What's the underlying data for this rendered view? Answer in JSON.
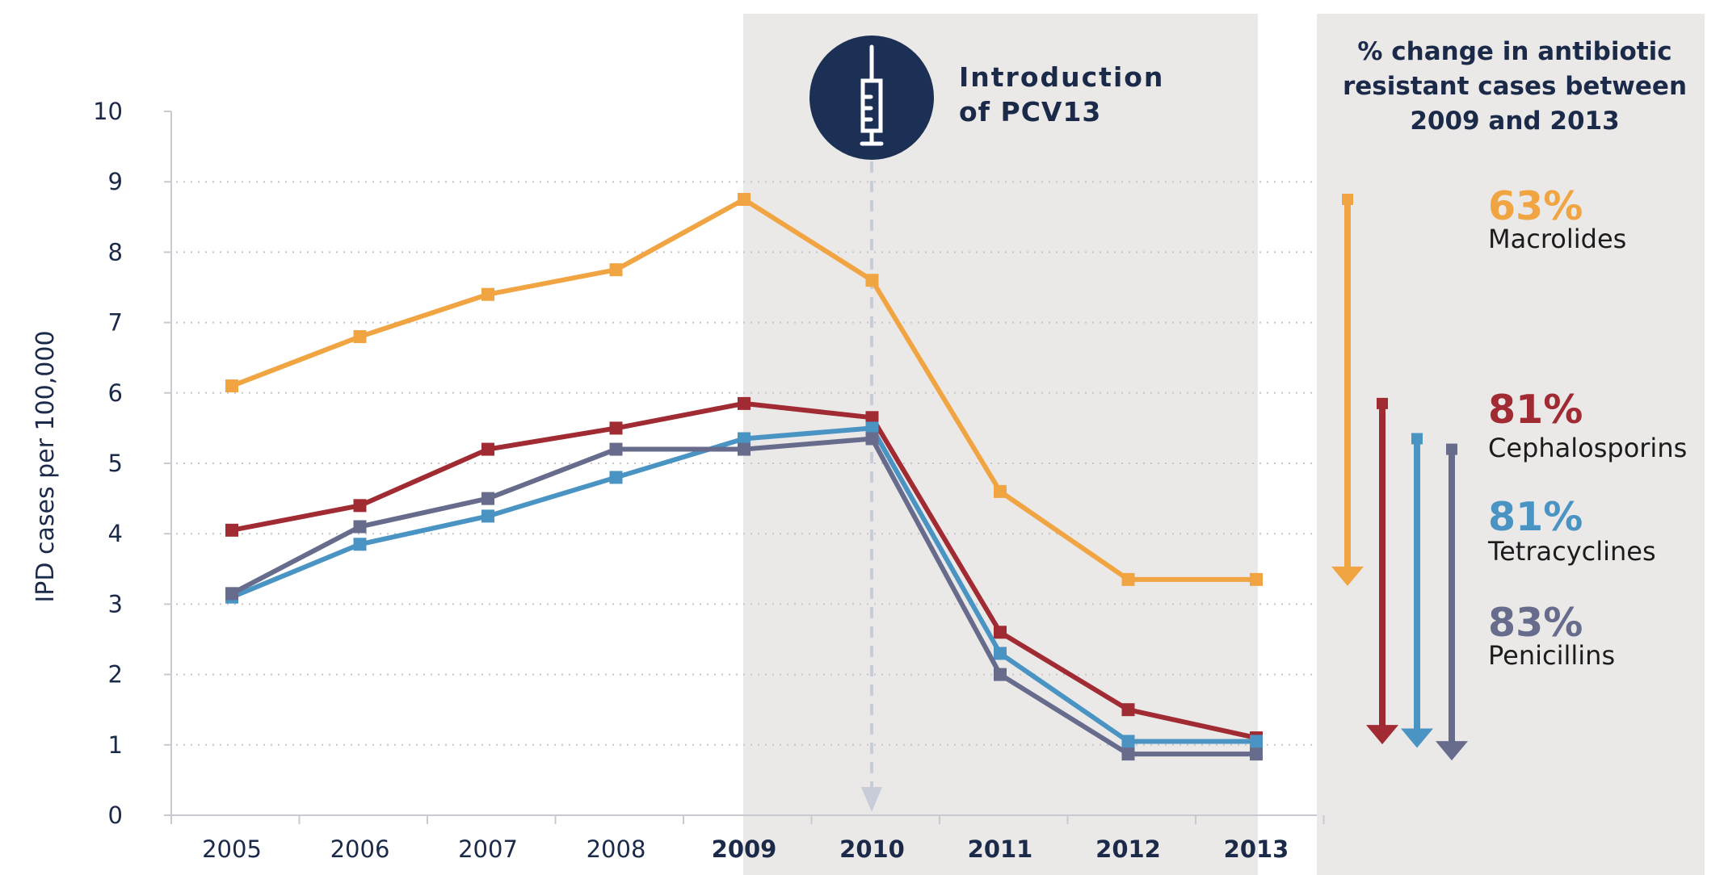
{
  "chart_data": {
    "type": "line",
    "title": "",
    "xlabel": "",
    "ylabel": "IPD cases per 100,000",
    "ylim": [
      0,
      10
    ],
    "yticks": [
      "0",
      "1",
      "2",
      "3",
      "4",
      "5",
      "6",
      "7",
      "8",
      "9",
      "10"
    ],
    "categories": [
      "2005",
      "2006",
      "2007",
      "2008",
      "2009",
      "2010",
      "2011",
      "2012",
      "2013"
    ],
    "bold_categories": [
      "2009",
      "2010",
      "2011",
      "2012",
      "2013"
    ],
    "grid": "horizontal dotted",
    "shaded_range": [
      "2009",
      "2013"
    ],
    "annotation": {
      "line1": "Introduction",
      "line2": "of PCV13",
      "at": "2010",
      "icon": "syringe-icon"
    },
    "series": [
      {
        "name": "Macrolides",
        "color": "#f0a442",
        "values": [
          6.1,
          6.8,
          7.4,
          7.75,
          8.75,
          7.6,
          4.6,
          3.35,
          3.35
        ]
      },
      {
        "name": "Cephalosporins",
        "color": "#a12b33",
        "values": [
          4.05,
          4.4,
          5.2,
          5.5,
          5.85,
          5.65,
          2.6,
          1.5,
          1.1
        ]
      },
      {
        "name": "Tetracyclines",
        "color": "#4a94c4",
        "values": [
          3.1,
          3.85,
          4.25,
          4.8,
          5.35,
          5.5,
          2.3,
          1.05,
          1.05
        ]
      },
      {
        "name": "Penicillins",
        "color": "#676b8c",
        "values": [
          3.15,
          4.1,
          4.5,
          5.2,
          5.2,
          5.35,
          2.0,
          0.87,
          0.87
        ]
      }
    ]
  },
  "panel": {
    "title_line1": "% change in antibiotic",
    "title_line2": "resistant cases between",
    "title_line3": "2009 and 2013",
    "items": [
      {
        "pct": "63%",
        "label": "Macrolides",
        "color": "#f0a442"
      },
      {
        "pct": "81%",
        "label": "Cephalosporins",
        "color": "#a12b33"
      },
      {
        "pct": "81%",
        "label": "Tetracyclines",
        "color": "#4a94c4"
      },
      {
        "pct": "83%",
        "label": "Penicillins",
        "color": "#676b8c"
      }
    ]
  },
  "colors": {
    "navy": "#1c2f55",
    "shade": "#ebe9e8",
    "axis": "#c9c9d2",
    "dashed": "#c8ccd8"
  }
}
